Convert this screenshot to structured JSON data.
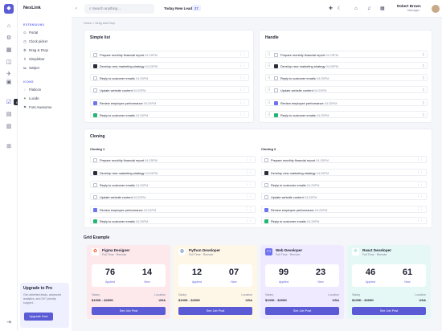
{
  "app": {
    "name": "NexLink"
  },
  "sidebar": {
    "section1": "EXTENSIONS",
    "items": [
      {
        "label": "Portal"
      },
      {
        "label": "Clock picker"
      },
      {
        "label": "Drag & Drop"
      },
      {
        "label": "Simplebar"
      },
      {
        "label": "Swiper"
      }
    ],
    "section2": "ICONS",
    "icons": [
      {
        "label": "Flaticon"
      },
      {
        "label": "Lucide"
      },
      {
        "label": "Font Awesome"
      }
    ],
    "tooltip": "Checklist ..."
  },
  "upgrade": {
    "title": "Upgrade to Pro",
    "text": "Get unlimited leads, advanced analytics, and 24/7 priority support...",
    "button": "Upgrade Now"
  },
  "topbar": {
    "search_placeholder": "Search anything ...",
    "leads_label": "Today New Leads",
    "leads_count": "27",
    "user_name": "Robert Brown",
    "user_role": "Manager"
  },
  "breadcrumb": "Home > Drag and Drop",
  "tasks": [
    {
      "label": "Prepare monthly financial report",
      "time": "04:25PM"
    },
    {
      "label": "Develop new marketing strategy",
      "time": "04:25PM"
    },
    {
      "label": "Reply to customer emails",
      "time": "04:25PM"
    },
    {
      "label": "Update website content",
      "time": "04:25PM"
    },
    {
      "label": "Review employee performance",
      "time": "04:25PM"
    },
    {
      "label": "Reply to customer emails",
      "time": "04:25PM"
    }
  ],
  "simple_list": {
    "title": "Simple list"
  },
  "handle": {
    "title": "Handle"
  },
  "cloning": {
    "title": "Cloning",
    "sub1": "Cloning 1",
    "sub2": "Cloning 2"
  },
  "grid": {
    "title": "Grid Example"
  },
  "jobs": [
    {
      "title": "Figma Designer",
      "meta": "Full Time · Remote",
      "applied": "76",
      "new": "14",
      "salary": "$100K - $200K",
      "location": "USA",
      "icon": "figma-icon",
      "bg": "#fde9ec"
    },
    {
      "title": "Python Developer",
      "meta": "Full Time · Remote",
      "applied": "12",
      "new": "07",
      "salary": "$100K - $200K",
      "location": "USA",
      "icon": "python-icon",
      "bg": "#fef6e6"
    },
    {
      "title": "Web Developer",
      "meta": "Full Time · Remote",
      "applied": "99",
      "new": "23",
      "salary": "$100K - $200K",
      "location": "USA",
      "icon": "web-icon",
      "bg": "#efeaff"
    },
    {
      "title": "React Developer",
      "meta": "Full Time · Remote",
      "applied": "46",
      "new": "61",
      "salary": "$100K - $200K",
      "location": "USA",
      "icon": "react-icon",
      "bg": "#e6f8f6"
    }
  ],
  "labels": {
    "applied": "Applied",
    "new": "New",
    "salary": "Salary",
    "location": "Location",
    "see_job": "See Job Post"
  }
}
